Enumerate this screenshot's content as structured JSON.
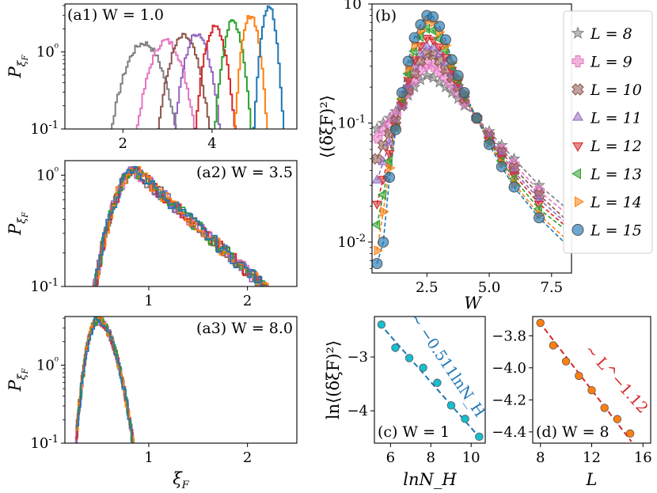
{
  "chart_data": [
    {
      "id": "a1",
      "type": "histogram",
      "title": "(a1) W = 1.0",
      "ylabel": "P_{ξF}",
      "xlabel": "",
      "yscale": "log",
      "xlim": [
        0.7,
        5.9
      ],
      "ylim": [
        0.1,
        4.2
      ],
      "xticks": [
        2,
        4
      ],
      "xtick_labels": [
        "2",
        "4"
      ],
      "yticks": [
        0.1,
        1
      ],
      "ytick_labels": [
        "10-1",
        "10⁰"
      ],
      "series": [
        {
          "name": "L = 8",
          "color": "#7f7f7f",
          "center": 2.45,
          "width": 0.5,
          "peak": 1.3
        },
        {
          "name": "L = 9",
          "color": "#e377c2",
          "center": 2.95,
          "width": 0.44,
          "peak": 1.4
        },
        {
          "name": "L = 10",
          "color": "#8c564b",
          "center": 3.35,
          "width": 0.38,
          "peak": 1.6
        },
        {
          "name": "L = 11",
          "color": "#9467bd",
          "center": 3.65,
          "width": 0.33,
          "peak": 1.75
        },
        {
          "name": "L = 12",
          "color": "#d62728",
          "center": 4.05,
          "width": 0.28,
          "peak": 2.1
        },
        {
          "name": "L = 13",
          "color": "#2ca02c",
          "center": 4.45,
          "width": 0.25,
          "peak": 2.5
        },
        {
          "name": "L = 14",
          "color": "#ff7f0e",
          "center": 4.85,
          "width": 0.22,
          "peak": 3.0
        },
        {
          "name": "L = 15",
          "color": "#1f77b4",
          "center": 5.25,
          "width": 0.19,
          "peak": 4.0
        }
      ]
    },
    {
      "id": "a2",
      "type": "histogram",
      "title": "(a2) W = 3.5",
      "ylabel": "P_{ξF}",
      "xlabel": "",
      "yscale": "log",
      "xlim": [
        0.15,
        2.5
      ],
      "ylim": [
        0.1,
        1.35
      ],
      "xticks": [
        1,
        2
      ],
      "xtick_labels": [
        "1",
        "2"
      ],
      "yticks": [
        0.1,
        1
      ],
      "ytick_labels": [
        "10-1",
        "10⁰"
      ],
      "curve": {
        "start": 0.42,
        "peak_x": 0.85,
        "peak_y": 1.1,
        "decay": 0.3,
        "end": 2.35
      }
    },
    {
      "id": "a3",
      "type": "histogram",
      "title": "(a3) W = 8.0",
      "ylabel": "P_{ξF}",
      "xlabel": "ξF",
      "yscale": "log",
      "xlim": [
        0.15,
        2.5
      ],
      "ylim": [
        0.1,
        4.2
      ],
      "xticks": [
        1,
        2
      ],
      "xtick_labels": [
        "1",
        "2"
      ],
      "yticks": [
        0.1,
        1
      ],
      "ytick_labels": [
        "10-1",
        "10⁰"
      ],
      "curve": {
        "start": 0.26,
        "peak_x": 0.47,
        "peak_y": 3.8,
        "end": 0.92
      }
    },
    {
      "id": "b",
      "type": "line",
      "title": "(b)",
      "xlabel": "W",
      "ylabel": "⟨(δξF)²⟩",
      "yscale": "log",
      "xlim": [
        0.3,
        8.3
      ],
      "ylim": [
        0.0055,
        1.0
      ],
      "xticks": [
        2.5,
        5.0,
        7.5
      ],
      "xtick_labels": [
        "2.5",
        "5.0",
        "7.5"
      ],
      "yticks": [
        0.01,
        0.1,
        1
      ],
      "ytick_labels": [
        "10-2",
        "10-1",
        "10⁰"
      ],
      "legend_position": "right",
      "x": [
        0.5,
        0.75,
        1.0,
        1.25,
        1.5,
        1.75,
        2.0,
        2.25,
        2.5,
        2.75,
        3.0,
        3.25,
        3.5,
        3.75,
        4.0,
        4.5,
        5.0,
        5.5,
        6.0,
        7.0,
        8.0
      ],
      "series": [
        {
          "name": "L = 8",
          "marker": "star",
          "color": "#7f7f7f",
          "values": [
            0.09,
            0.1,
            0.11,
            0.125,
            0.145,
            0.17,
            0.2,
            0.23,
            0.25,
            0.24,
            0.22,
            0.2,
            0.18,
            0.16,
            0.14,
            0.11,
            0.085,
            0.065,
            0.05,
            0.03,
            0.02
          ]
        },
        {
          "name": "L = 9",
          "marker": "plus",
          "color": "#e377c2",
          "values": [
            0.075,
            0.087,
            0.1,
            0.118,
            0.145,
            0.18,
            0.23,
            0.28,
            0.31,
            0.3,
            0.27,
            0.24,
            0.21,
            0.18,
            0.15,
            0.11,
            0.08,
            0.06,
            0.045,
            0.027,
            0.018
          ]
        },
        {
          "name": "L = 10",
          "marker": "x",
          "color": "#8c564b",
          "values": [
            0.05,
            0.065,
            0.082,
            0.105,
            0.14,
            0.19,
            0.26,
            0.33,
            0.38,
            0.37,
            0.33,
            0.28,
            0.24,
            0.2,
            0.16,
            0.11,
            0.078,
            0.057,
            0.042,
            0.025,
            0.016
          ]
        },
        {
          "name": "L = 11",
          "marker": "triup",
          "color": "#9467bd",
          "values": [
            0.033,
            0.047,
            0.068,
            0.098,
            0.14,
            0.21,
            0.3,
            0.38,
            0.44,
            0.43,
            0.38,
            0.32,
            0.26,
            0.21,
            0.17,
            0.11,
            0.075,
            0.054,
            0.039,
            0.023,
            0.015
          ]
        },
        {
          "name": "L = 12",
          "marker": "tridown",
          "color": "#d62728",
          "values": [
            0.021,
            0.034,
            0.056,
            0.095,
            0.15,
            0.23,
            0.34,
            0.45,
            0.52,
            0.5,
            0.44,
            0.36,
            0.28,
            0.22,
            0.17,
            0.11,
            0.072,
            0.051,
            0.037,
            0.021,
            0.014
          ]
        },
        {
          "name": "L = 13",
          "marker": "trileft",
          "color": "#2ca02c",
          "values": [
            0.014,
            0.025,
            0.048,
            0.092,
            0.16,
            0.26,
            0.4,
            0.53,
            0.62,
            0.6,
            0.51,
            0.41,
            0.3,
            0.23,
            0.17,
            0.11,
            0.07,
            0.048,
            0.034,
            0.019,
            0.013
          ]
        },
        {
          "name": "L = 14",
          "marker": "triright",
          "color": "#ff7f0e",
          "values": [
            0.0085,
            0.018,
            0.042,
            0.09,
            0.17,
            0.29,
            0.45,
            0.6,
            0.72,
            0.7,
            0.58,
            0.45,
            0.32,
            0.24,
            0.18,
            0.11,
            0.068,
            0.046,
            0.031,
            0.017,
            0.011
          ]
        },
        {
          "name": "L = 15",
          "marker": "circle",
          "color": "#1f77b4",
          "values": [
            0.0066,
            0.01,
            0.035,
            0.088,
            0.18,
            0.33,
            0.52,
            0.67,
            0.8,
            0.78,
            0.65,
            0.5,
            0.34,
            0.25,
            0.18,
            0.11,
            0.066,
            0.043,
            0.029,
            0.016,
            0.01
          ]
        }
      ]
    },
    {
      "id": "c",
      "type": "scatter",
      "title": "(c) W = 1",
      "xlabel": "lnN_H",
      "ylabel": "ln⟨(δξF)²⟩",
      "xlim": [
        5.2,
        10.7
      ],
      "ylim": [
        -4.6,
        -2.25
      ],
      "xticks": [
        6,
        8,
        10
      ],
      "xtick_labels": [
        "6",
        "8",
        "10"
      ],
      "yticks": [
        -4,
        -3
      ],
      "ytick_labels": [
        "−4",
        "−3"
      ],
      "annotation": "~ −0.511lnN_H",
      "color": "#17becf",
      "x": [
        5.55,
        6.24,
        6.93,
        7.62,
        8.32,
        9.01,
        9.7,
        10.4
      ],
      "y": [
        -2.4,
        -2.83,
        -3.02,
        -3.2,
        -3.48,
        -3.9,
        -4.15,
        -4.48
      ],
      "fit": {
        "slope": -0.511,
        "intercept": 0.4
      }
    },
    {
      "id": "d",
      "type": "scatter",
      "title": "(d) W = 8",
      "xlabel": "L",
      "ylabel": "",
      "xlim": [
        7.4,
        16.6
      ],
      "ylim": [
        -4.47,
        -3.68
      ],
      "xticks": [
        8,
        12,
        16
      ],
      "xtick_labels": [
        "8",
        "12",
        "16"
      ],
      "yticks": [
        -4.4,
        -4.2,
        -4.0,
        -3.8
      ],
      "ytick_labels": [
        "−4.4",
        "−4.2",
        "−4.0",
        "−3.8"
      ],
      "annotation": "~ L^−1.12",
      "color": "#ff7f0e",
      "x": [
        8,
        9,
        10,
        11,
        12,
        13,
        14,
        15
      ],
      "y": [
        -3.72,
        -3.86,
        -3.96,
        -4.05,
        -4.14,
        -4.25,
        -4.32,
        -4.41
      ],
      "fit": {
        "slope": -0.0986,
        "intercept": -2.93
      }
    }
  ]
}
